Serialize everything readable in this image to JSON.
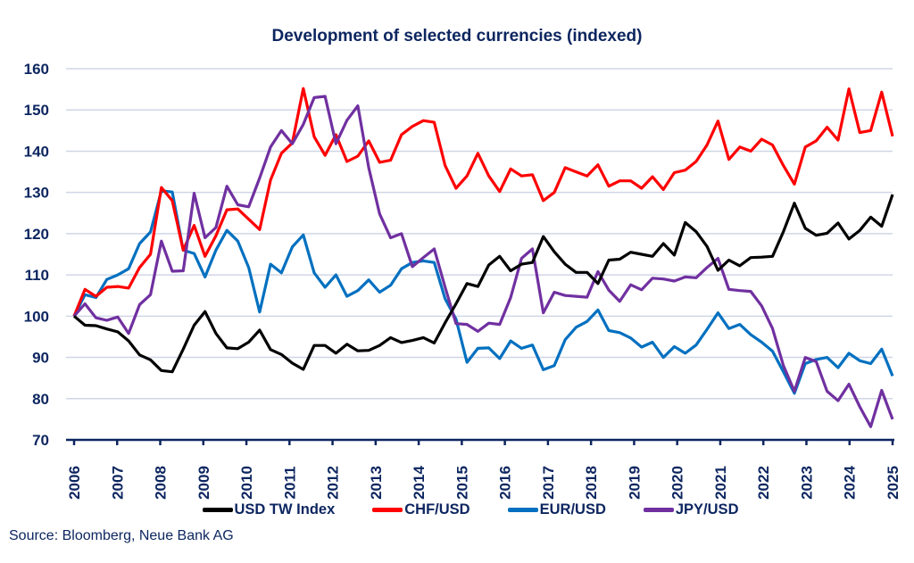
{
  "chart_data": {
    "type": "line",
    "title": "Development of selected currencies (indexed)",
    "xlabel": "",
    "ylabel": "",
    "ylim": [
      70,
      160
    ],
    "xlim": [
      2006,
      2025
    ],
    "yticks": [
      "70",
      "80",
      "90",
      "100",
      "110",
      "120",
      "130",
      "140",
      "150",
      "160"
    ],
    "xticks": [
      "2006",
      "2007",
      "2008",
      "2009",
      "2010",
      "2011",
      "2012",
      "2013",
      "2014",
      "2015",
      "2016",
      "2017",
      "2018",
      "2019",
      "2020",
      "2021",
      "2022",
      "2023",
      "2024",
      "2025"
    ],
    "grid": "horizontal",
    "legend_position": "bottom",
    "frequency": "quarterly",
    "series": [
      {
        "name": "USD TW Index",
        "color": "#000000",
        "values": [
          100,
          97.8,
          97.7,
          96.9,
          96.2,
          94.0,
          90.6,
          89.4,
          86.8,
          86.5,
          92.0,
          97.8,
          101.1,
          95.8,
          92.3,
          92.1,
          93.7,
          96.6,
          91.9,
          90.7,
          88.6,
          87.1,
          92.9,
          92.9,
          91.0,
          93.2,
          91.6,
          91.7,
          92.9,
          94.8,
          93.6,
          94.1,
          94.8,
          93.5,
          98.4,
          103.0,
          107.9,
          107.2,
          112.4,
          114.5,
          111.0,
          112.6,
          113.0,
          119.3,
          115.6,
          112.6,
          110.6,
          110.6,
          107.9,
          113.6,
          113.8,
          115.5,
          115.0,
          114.5,
          117.6,
          114.8,
          122.7,
          120.5,
          116.9,
          111.1,
          113.6,
          112.2,
          114.2,
          114.3,
          114.5,
          120.5,
          127.4,
          121.3,
          119.6,
          120.1,
          122.6,
          118.7,
          120.8,
          124.0,
          121.8,
          129.5
        ]
      },
      {
        "name": "CHF/USD",
        "color": "#ff0000",
        "values": [
          100,
          106.5,
          104.8,
          107.0,
          107.2,
          106.8,
          111.8,
          115.0,
          131.2,
          128.0,
          116.0,
          122.0,
          114.5,
          119.5,
          125.8,
          126.0,
          123.5,
          121.0,
          133.0,
          139.5,
          142.0,
          155.2,
          143.5,
          139.0,
          144.0,
          137.5,
          138.8,
          142.5,
          137.3,
          137.8,
          144.0,
          146.0,
          147.4,
          147.0,
          136.5,
          131.0,
          134.0,
          139.5,
          134.0,
          130.2,
          135.7,
          134.0,
          134.3,
          128.0,
          130.0,
          136.0,
          135.0,
          134.0,
          136.7,
          131.5,
          132.8,
          132.8,
          131.0,
          133.8,
          130.7,
          134.8,
          135.4,
          137.5,
          141.5,
          147.3,
          138.0,
          141.0,
          140.0,
          142.9,
          141.5,
          136.5,
          132.0,
          141.0,
          142.5,
          145.8,
          142.7,
          155.1,
          144.5,
          145.0,
          154.3,
          143.6
        ]
      },
      {
        "name": "EUR/USD",
        "color": "#0070c0",
        "values": [
          100,
          105.2,
          104.5,
          108.9,
          110.0,
          111.5,
          117.6,
          120.4,
          130.4,
          130.1,
          116.0,
          115.2,
          109.5,
          116.0,
          120.8,
          118.2,
          111.8,
          101.0,
          112.6,
          110.5,
          116.8,
          119.7,
          110.5,
          107.0,
          110.0,
          104.8,
          106.2,
          108.8,
          105.8,
          107.5,
          111.5,
          113.0,
          113.4,
          113.0,
          104.2,
          99.3,
          88.8,
          92.2,
          92.3,
          89.7,
          94.0,
          92.2,
          93.0,
          87.0,
          88.0,
          94.3,
          97.3,
          98.7,
          101.5,
          96.5,
          96.0,
          94.7,
          92.5,
          93.7,
          90.0,
          92.6,
          91.0,
          93.0,
          96.8,
          100.8,
          97.0,
          98.0,
          95.5,
          93.7,
          91.5,
          86.5,
          81.3,
          88.5,
          89.5,
          90.0,
          87.5,
          91.0,
          89.2,
          88.5,
          92.0,
          85.5
        ]
      },
      {
        "name": "JPY/USD",
        "color": "#7030a0",
        "values": [
          100,
          103.0,
          99.6,
          99.0,
          99.8,
          95.8,
          102.8,
          105.2,
          118.2,
          110.9,
          111.0,
          129.8,
          119.0,
          121.5,
          131.5,
          127.0,
          126.5,
          133.5,
          141.0,
          145.0,
          141.8,
          146.5,
          153.0,
          153.3,
          141.8,
          147.5,
          151.0,
          136.0,
          124.8,
          119.0,
          120.0,
          112.0,
          114.2,
          116.3,
          107.0,
          98.2,
          98.0,
          96.3,
          98.3,
          98.0,
          104.5,
          114.0,
          116.3,
          100.8,
          105.8,
          105.0,
          104.8,
          104.6,
          110.8,
          106.3,
          103.6,
          107.6,
          106.4,
          109.2,
          109.0,
          108.5,
          109.5,
          109.3,
          111.8,
          114.0,
          106.5,
          106.2,
          106.0,
          102.5,
          97.0,
          88.0,
          81.8,
          90.0,
          89.0,
          81.8,
          79.5,
          83.5,
          78.0,
          73.2,
          82.0,
          75.0
        ]
      }
    ]
  },
  "legend": {
    "items": [
      {
        "label": "USD TW Index",
        "color": "#000000"
      },
      {
        "label": "CHF/USD",
        "color": "#ff0000"
      },
      {
        "label": "EUR/USD",
        "color": "#0070c0"
      },
      {
        "label": "JPY/USD",
        "color": "#7030a0"
      }
    ]
  },
  "source": "Source: Bloomberg, Neue Bank AG"
}
